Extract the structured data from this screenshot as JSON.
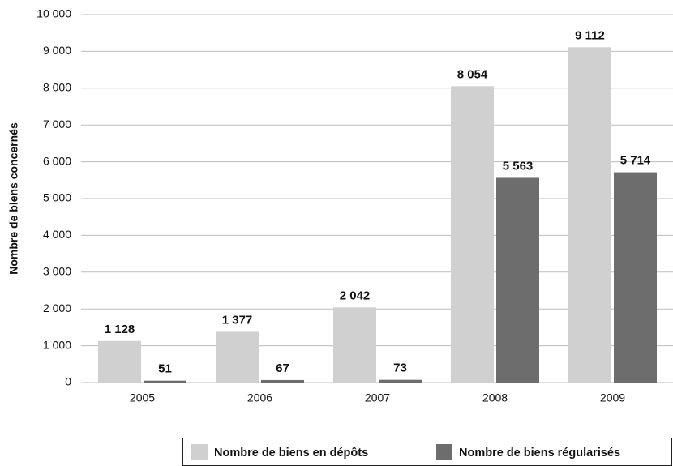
{
  "chart_data": {
    "type": "bar",
    "y_label": "Nombre de biens concernés",
    "categories": [
      "2005",
      "2006",
      "2007",
      "2008",
      "2009"
    ],
    "series": [
      {
        "name": "Nombre de biens en dépôts",
        "color": "#d0d0d0",
        "values": [
          1128,
          1377,
          2042,
          8054,
          9112
        ],
        "value_labels": [
          "1 128",
          "1 377",
          "2 042",
          "8 054",
          "9 112"
        ]
      },
      {
        "name": "Nombre de biens régularisés",
        "color": "#6d6d6e",
        "values": [
          51,
          67,
          73,
          5563,
          5714
        ],
        "value_labels": [
          "51",
          "67",
          "73",
          "5 563",
          "5 714"
        ]
      }
    ],
    "ylim": [
      0,
      10000
    ],
    "yticks": [
      0,
      {
        "value": 1000,
        "label": "1 000"
      },
      {
        "value": 2000,
        "label": "2 000"
      },
      {
        "value": 3000,
        "label": "3 000"
      },
      {
        "value": 4000,
        "label": "4 000"
      },
      {
        "value": 5000,
        "label": "5 000"
      },
      {
        "value": 6000,
        "label": "6 000"
      },
      {
        "value": 7000,
        "label": "7 000"
      },
      {
        "value": 8000,
        "label": "8 000"
      },
      {
        "value": 9000,
        "label": "9 000"
      },
      {
        "value": 10000,
        "label": "10 000"
      }
    ],
    "grid": true
  }
}
